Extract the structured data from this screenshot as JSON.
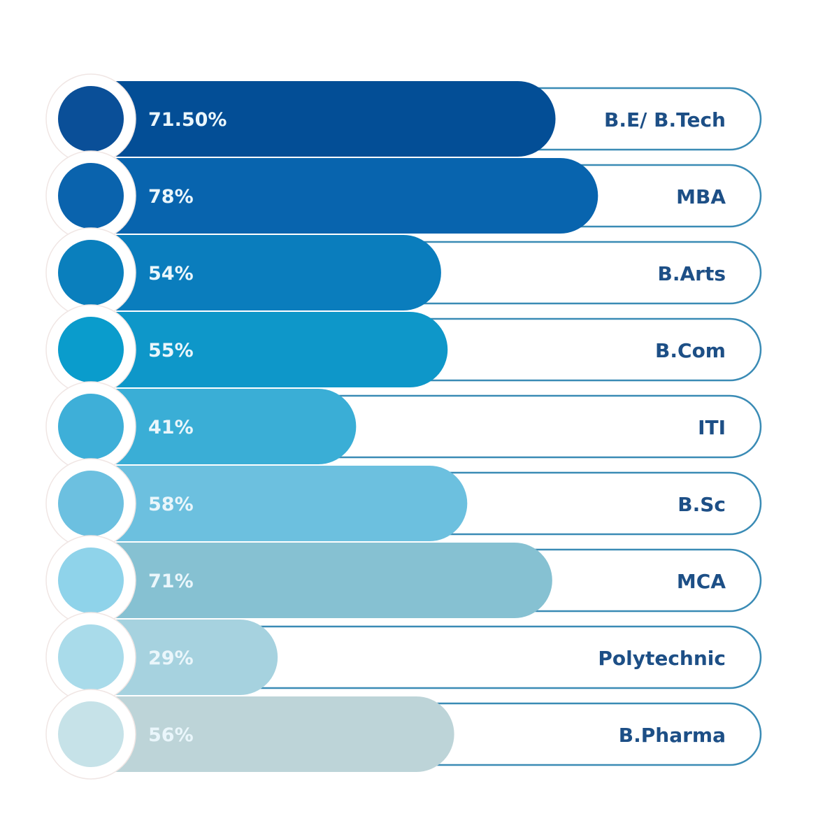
{
  "chart_data": {
    "type": "bar",
    "orientation": "horizontal",
    "title": "",
    "categories": [
      "B.E/ B.Tech",
      "MBA",
      "B.Arts",
      "B.Com",
      "ITI",
      "B.Sc",
      "MCA",
      "Polytechnic",
      "B.Pharma"
    ],
    "values": [
      71.5,
      78,
      54,
      55,
      41,
      58,
      71,
      29,
      56
    ],
    "value_labels": [
      "71.50%",
      "78%",
      "54%",
      "55%",
      "41%",
      "58%",
      "71%",
      "29%",
      "56%"
    ],
    "unit": "%",
    "xlim": [
      0,
      100
    ],
    "grid": false,
    "legend": "none",
    "colors": {
      "bars": [
        "#034e96",
        "#0864ae",
        "#0a7dbd",
        "#0e97c9",
        "#3aaed6",
        "#6cc0df",
        "#86c1d2",
        "#a6d2df",
        "#bdd4d8"
      ],
      "circles": [
        "#0a4f98",
        "#0a63ad",
        "#0a7fbd",
        "#0a9ccc",
        "#3eafd8",
        "#6cc0e0",
        "#8fd3ea",
        "#a9dbea",
        "#c6e2e8"
      ],
      "outline": "#3a8bb5"
    }
  }
}
